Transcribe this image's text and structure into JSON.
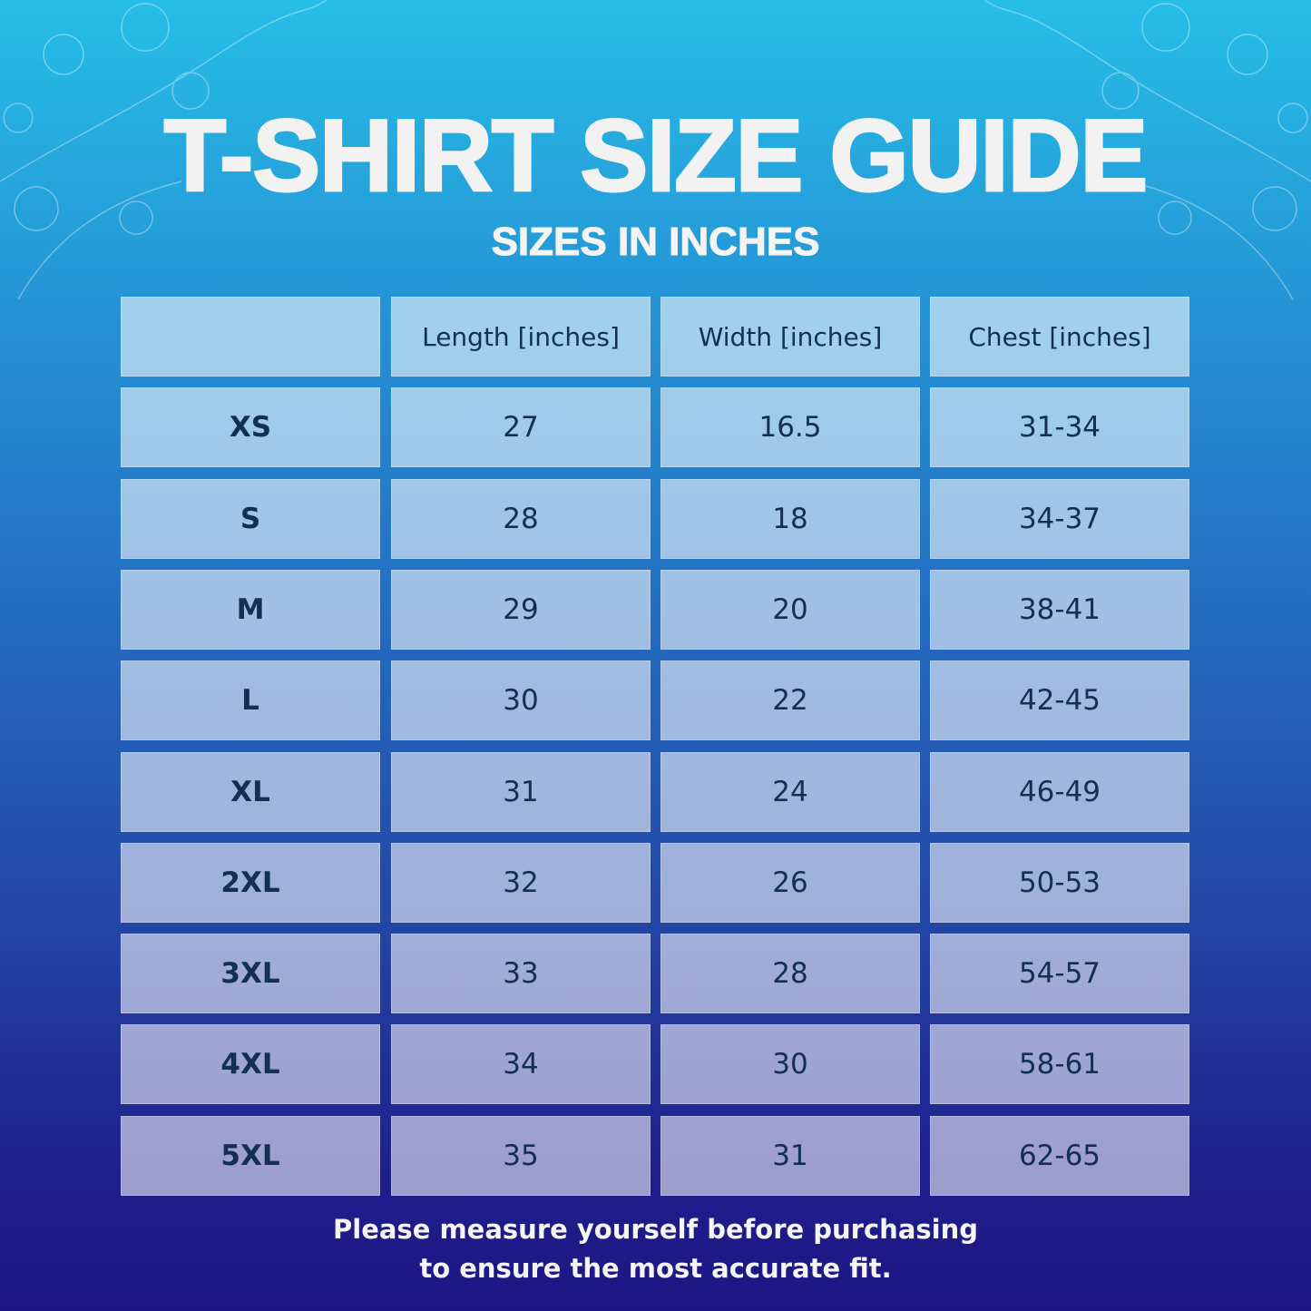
{
  "title": "T-SHIRT SIZE GUIDE",
  "subtitle": "SIZES IN INCHES",
  "table": {
    "headers": [
      "",
      "Length [inches]",
      "Width [inches]",
      "Chest [inches]"
    ],
    "rows": [
      [
        "XS",
        "27",
        "16.5",
        "31-34"
      ],
      [
        "S",
        "28",
        "18",
        "34-37"
      ],
      [
        "M",
        "29",
        "20",
        "38-41"
      ],
      [
        "L",
        "30",
        "22",
        "42-45"
      ],
      [
        "XL",
        "31",
        "24",
        "46-49"
      ],
      [
        "2XL",
        "32",
        "26",
        "50-53"
      ],
      [
        "3XL",
        "33",
        "28",
        "54-57"
      ],
      [
        "4XL",
        "34",
        "30",
        "58-61"
      ],
      [
        "5XL",
        "35",
        "31",
        "62-65"
      ]
    ]
  },
  "footer": {
    "line1": "Please measure yourself before purchasing",
    "line2": "to ensure the most accurate fit."
  },
  "colors": {
    "background_top": "#26bee7",
    "background_bottom": "#1c1783",
    "cell_text": "#143050",
    "title": "#f2f2f2"
  },
  "decorations": [
    "floral-line-art-top-left",
    "floral-line-art-top-right"
  ]
}
